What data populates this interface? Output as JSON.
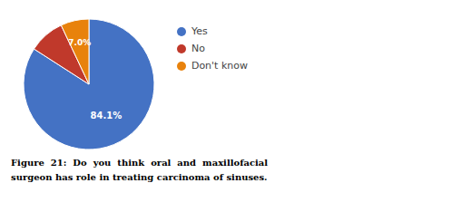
{
  "chart_data": {
    "type": "pie",
    "title": "Figure  21:  Do  you  think  oral  and  maxillofacial",
    "subtitle": "surgeon has role in treating carcinoma of sinuses.",
    "categories": [
      "Yes",
      "No",
      "Don't know"
    ],
    "values": [
      84.1,
      8.9,
      7.0
    ],
    "value_labels": [
      "84.1%",
      null,
      "7.0%"
    ],
    "data_labels": true,
    "colors": [
      "#4472C4",
      "#C0392B",
      "#E8820C"
    ],
    "legend": "right"
  }
}
